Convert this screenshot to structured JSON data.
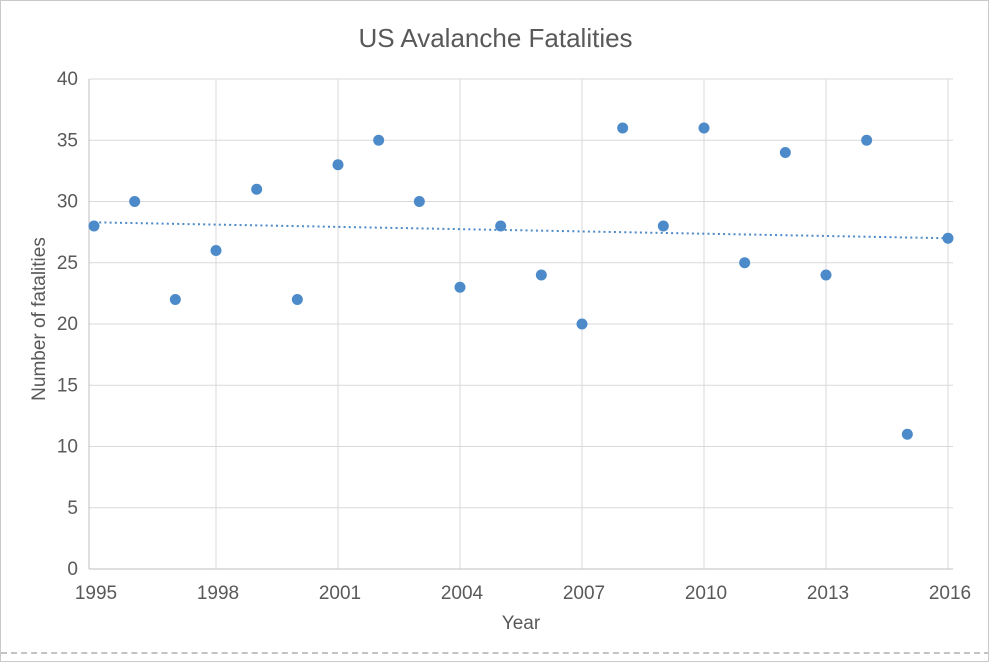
{
  "chart_data": {
    "type": "scatter",
    "title": "US Avalanche Fatalities",
    "xlabel": "Year",
    "ylabel": "Number of fatalities",
    "x": [
      1995,
      1996,
      1997,
      1998,
      1999,
      2000,
      2001,
      2002,
      2003,
      2004,
      2005,
      2006,
      2007,
      2008,
      2009,
      2010,
      2011,
      2012,
      2013,
      2014,
      2015,
      2016
    ],
    "values": [
      28,
      30,
      22,
      26,
      31,
      22,
      33,
      35,
      30,
      23,
      28,
      24,
      20,
      36,
      28,
      36,
      25,
      34,
      24,
      35,
      11,
      27
    ],
    "xlim": [
      1995,
      2016
    ],
    "ylim": [
      0,
      40
    ],
    "x_ticks": [
      1995,
      1998,
      2001,
      2004,
      2007,
      2010,
      2013,
      2016
    ],
    "y_ticks": [
      0,
      5,
      10,
      15,
      20,
      25,
      30,
      35,
      40
    ],
    "grid": true,
    "legend": "none",
    "trendline": {
      "style": "dotted",
      "x1": 1995,
      "y1": 28.3,
      "x2": 2016,
      "y2": 27.0
    },
    "colors": {
      "point": "#4d8ac9",
      "trend": "#4d8ac9",
      "text": "#595959",
      "gridline": "#d9d9d9",
      "axis": "#bfbfbf"
    }
  },
  "frame": {
    "border_color": "#c9c9c9"
  }
}
